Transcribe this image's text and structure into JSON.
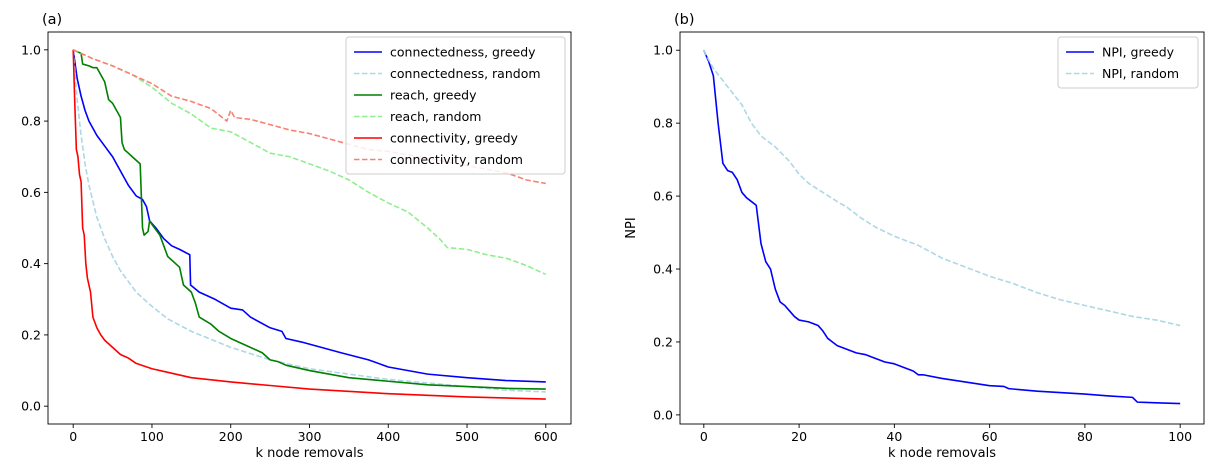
{
  "chart_data": [
    {
      "type": "line",
      "panel_label": "(a)",
      "title": "",
      "xlabel": "k node removals",
      "ylabel": "",
      "xlim": [
        -32,
        632
      ],
      "ylim": [
        -0.05,
        1.05
      ],
      "xticks": [
        0,
        100,
        200,
        300,
        400,
        500,
        600
      ],
      "yticks": [
        0.0,
        0.2,
        0.4,
        0.6,
        0.8,
        1.0
      ],
      "grid": false,
      "legend_position": "top-right",
      "series": [
        {
          "name": "connectedness, greedy",
          "color": "#0000ff",
          "style": "solid",
          "x": [
            0,
            5,
            10,
            15,
            20,
            25,
            30,
            40,
            50,
            60,
            70,
            80,
            88,
            93,
            97,
            105,
            115,
            125,
            135,
            148,
            149,
            160,
            180,
            200,
            215,
            225,
            250,
            265,
            270,
            290,
            340,
            375,
            400,
            450,
            500,
            550,
            600
          ],
          "y": [
            1.0,
            0.92,
            0.87,
            0.83,
            0.8,
            0.78,
            0.76,
            0.73,
            0.7,
            0.66,
            0.62,
            0.59,
            0.58,
            0.56,
            0.52,
            0.5,
            0.47,
            0.45,
            0.44,
            0.425,
            0.34,
            0.32,
            0.3,
            0.275,
            0.27,
            0.25,
            0.22,
            0.21,
            0.19,
            0.18,
            0.15,
            0.13,
            0.11,
            0.09,
            0.08,
            0.072,
            0.068
          ]
        },
        {
          "name": "connectedness, random",
          "color": "#add8e6",
          "style": "dashed",
          "x": [
            0,
            5,
            10,
            15,
            20,
            30,
            40,
            50,
            60,
            70,
            80,
            100,
            120,
            150,
            200,
            250,
            300,
            350,
            400,
            450,
            500,
            550,
            600
          ],
          "y": [
            1.0,
            0.86,
            0.76,
            0.68,
            0.62,
            0.53,
            0.47,
            0.42,
            0.38,
            0.35,
            0.32,
            0.28,
            0.245,
            0.21,
            0.165,
            0.13,
            0.105,
            0.09,
            0.075,
            0.065,
            0.055,
            0.045,
            0.04
          ]
        },
        {
          "name": "reach, greedy",
          "color": "#008000",
          "style": "solid",
          "x": [
            0,
            10,
            12,
            20,
            25,
            30,
            40,
            45,
            50,
            60,
            62,
            65,
            75,
            85,
            88,
            90,
            95,
            97,
            100,
            110,
            115,
            120,
            135,
            140,
            150,
            155,
            160,
            175,
            185,
            200,
            220,
            240,
            250,
            260,
            270,
            300,
            350,
            400,
            450,
            500,
            550,
            600
          ],
          "y": [
            1.0,
            0.99,
            0.96,
            0.955,
            0.95,
            0.95,
            0.91,
            0.86,
            0.85,
            0.81,
            0.74,
            0.72,
            0.7,
            0.68,
            0.5,
            0.48,
            0.49,
            0.52,
            0.51,
            0.48,
            0.45,
            0.42,
            0.39,
            0.34,
            0.32,
            0.29,
            0.25,
            0.23,
            0.21,
            0.19,
            0.17,
            0.15,
            0.13,
            0.125,
            0.115,
            0.1,
            0.08,
            0.07,
            0.06,
            0.055,
            0.05,
            0.048
          ]
        },
        {
          "name": "reach, random",
          "color": "#90ee90",
          "style": "dashed",
          "x": [
            0,
            25,
            50,
            75,
            100,
            125,
            150,
            175,
            200,
            225,
            250,
            275,
            300,
            325,
            350,
            375,
            400,
            425,
            450,
            465,
            475,
            500,
            525,
            550,
            575,
            600
          ],
          "y": [
            1.0,
            0.975,
            0.955,
            0.93,
            0.895,
            0.85,
            0.82,
            0.78,
            0.77,
            0.74,
            0.71,
            0.7,
            0.68,
            0.66,
            0.635,
            0.6,
            0.57,
            0.545,
            0.5,
            0.47,
            0.445,
            0.44,
            0.425,
            0.415,
            0.395,
            0.37
          ]
        },
        {
          "name": "connectivity, greedy",
          "color": "#ff0000",
          "style": "solid",
          "x": [
            0,
            2,
            4,
            6,
            8,
            10,
            12,
            14,
            16,
            18,
            20,
            22,
            25,
            30,
            35,
            40,
            50,
            60,
            70,
            80,
            100,
            120,
            150,
            200,
            250,
            300,
            400,
            500,
            600
          ],
          "y": [
            1.0,
            0.85,
            0.72,
            0.7,
            0.65,
            0.63,
            0.5,
            0.48,
            0.4,
            0.36,
            0.34,
            0.32,
            0.25,
            0.22,
            0.2,
            0.185,
            0.165,
            0.145,
            0.135,
            0.12,
            0.105,
            0.095,
            0.08,
            0.068,
            0.058,
            0.048,
            0.035,
            0.026,
            0.02
          ]
        },
        {
          "name": "connectivity, random",
          "color": "#fa8072",
          "style": "dashed",
          "x": [
            0,
            25,
            50,
            75,
            100,
            125,
            150,
            175,
            195,
            200,
            205,
            225,
            250,
            275,
            300,
            325,
            350,
            375,
            400,
            425,
            450,
            475,
            500,
            525,
            550,
            575,
            600
          ],
          "y": [
            1.0,
            0.975,
            0.955,
            0.93,
            0.905,
            0.87,
            0.855,
            0.835,
            0.8,
            0.83,
            0.81,
            0.805,
            0.79,
            0.775,
            0.765,
            0.75,
            0.735,
            0.72,
            0.715,
            0.705,
            0.695,
            0.685,
            0.675,
            0.665,
            0.655,
            0.635,
            0.625
          ]
        }
      ]
    },
    {
      "type": "line",
      "panel_label": "(b)",
      "title": "",
      "xlabel": "k node removals",
      "ylabel": "NPI",
      "xlim": [
        -5,
        105
      ],
      "ylim": [
        -0.025,
        1.05
      ],
      "xticks": [
        0,
        20,
        40,
        60,
        80,
        100
      ],
      "yticks": [
        0.0,
        0.2,
        0.4,
        0.6,
        0.8,
        1.0
      ],
      "grid": false,
      "legend_position": "top-right",
      "series": [
        {
          "name": "NPI, greedy",
          "color": "#0000ff",
          "style": "solid",
          "x": [
            0,
            1,
            2,
            3,
            4,
            5,
            6,
            7,
            8,
            9,
            10,
            11,
            12,
            13,
            14,
            15,
            16,
            17,
            18,
            19,
            20,
            22,
            24,
            25,
            26,
            27,
            28,
            30,
            32,
            34,
            36,
            38,
            40,
            42,
            44,
            45,
            46,
            50,
            55,
            60,
            63,
            64,
            70,
            80,
            85,
            90,
            91,
            95,
            100
          ],
          "y": [
            1.0,
            0.97,
            0.93,
            0.8,
            0.69,
            0.67,
            0.665,
            0.645,
            0.61,
            0.595,
            0.585,
            0.575,
            0.47,
            0.42,
            0.4,
            0.345,
            0.31,
            0.3,
            0.285,
            0.27,
            0.26,
            0.255,
            0.245,
            0.23,
            0.21,
            0.2,
            0.19,
            0.18,
            0.17,
            0.165,
            0.155,
            0.145,
            0.14,
            0.13,
            0.12,
            0.11,
            0.11,
            0.1,
            0.09,
            0.08,
            0.078,
            0.072,
            0.065,
            0.057,
            0.052,
            0.048,
            0.035,
            0.033,
            0.031
          ]
        },
        {
          "name": "NPI, random",
          "color": "#add8e6",
          "style": "dashed",
          "x": [
            0,
            2,
            5,
            8,
            10,
            12,
            15,
            18,
            20,
            22,
            25,
            28,
            30,
            33,
            36,
            40,
            45,
            50,
            55,
            60,
            65,
            70,
            75,
            80,
            85,
            90,
            95,
            100
          ],
          "y": [
            1.0,
            0.95,
            0.9,
            0.85,
            0.8,
            0.765,
            0.735,
            0.695,
            0.66,
            0.635,
            0.61,
            0.585,
            0.57,
            0.54,
            0.515,
            0.49,
            0.465,
            0.43,
            0.405,
            0.38,
            0.36,
            0.335,
            0.315,
            0.3,
            0.285,
            0.27,
            0.26,
            0.245
          ]
        }
      ]
    }
  ]
}
